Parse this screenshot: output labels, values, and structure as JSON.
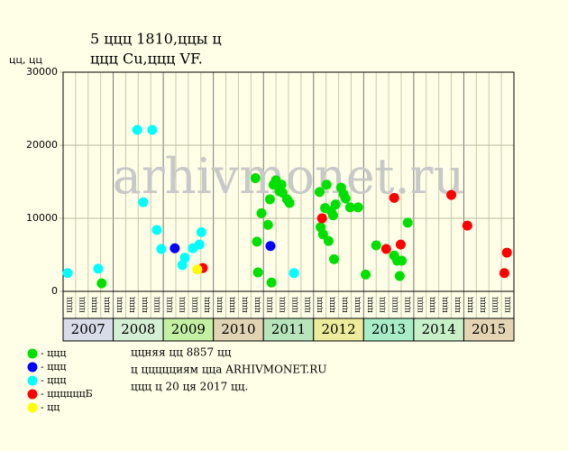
{
  "chart_data": {
    "type": "scatter",
    "title": "5 ццц 1810,ццы ц",
    "subtitle": "ццц Cu,ццц VF.",
    "y_label": "цц, цц",
    "watermark": "arhivmonet.ru",
    "xlim": [
      2007,
      2016
    ],
    "ylim": [
      0,
      30000
    ],
    "yticks": [
      0,
      10000,
      20000,
      30000
    ],
    "years": [
      "2007",
      "2008",
      "2009",
      "2010",
      "2011",
      "2012",
      "2013",
      "2014",
      "2015"
    ],
    "year_colors": [
      "#d8dce8",
      "#d4f0d4",
      "#c4f0a4",
      "#e0d4b4",
      "#b8e4bc",
      "#ecec9c",
      "#a8ecc8",
      "#c8f0c8",
      "#e4d4b4"
    ],
    "x_sublabels": [
      "ццц",
      "ццц",
      "ццц",
      "ццц",
      "ццц",
      "ццц",
      "ццц",
      "ццц",
      "ццц",
      "ццц",
      "ццц",
      "ццц",
      "ццц",
      "ццц",
      "ццц",
      "ццц",
      "ццц",
      "ццц",
      "ццц",
      "ццц",
      "ццц",
      "ццц",
      "ццц",
      "ццц",
      "ццц",
      "ццц",
      "ццц",
      "ццц",
      "ццц",
      "ццц",
      "ццц",
      "ццц",
      "ццц",
      "ццц",
      "ццц",
      "ццц"
    ],
    "series": [
      {
        "name": "- ццц",
        "color": "#00e000",
        "x": [
          2007.77,
          2010.84,
          2010.87,
          2010.89,
          2010.96,
          2011.09,
          2011.13,
          2011.16,
          2011.2,
          2011.25,
          2011.32,
          2011.36,
          2011.38,
          2011.47,
          2011.52,
          2012.12,
          2012.14,
          2012.19,
          2012.23,
          2012.26,
          2012.3,
          2012.35,
          2012.39,
          2012.41,
          2012.44,
          2012.55,
          2012.6,
          2012.64,
          2012.73,
          2012.89,
          2013.04,
          2013.25,
          2013.61,
          2013.67,
          2013.76,
          2013.72,
          2013.88
        ],
        "values": [
          1100,
          15500,
          6800,
          2600,
          10700,
          9100,
          12600,
          1200,
          14600,
          15200,
          13700,
          14600,
          13500,
          12600,
          12100,
          13600,
          8800,
          7800,
          11400,
          14600,
          6900,
          11000,
          10400,
          4400,
          11900,
          14200,
          13300,
          12700,
          11500,
          11500,
          2300,
          6300,
          4900,
          4200,
          4200,
          2100,
          9400
        ]
      },
      {
        "name": "- ццц",
        "color": "#0000ff",
        "x": [
          2009.23,
          2011.14
        ],
        "values": [
          5900,
          6200
        ]
      },
      {
        "name": "- ццц",
        "color": "#00ffff",
        "x": [
          2007.09,
          2007.7,
          2008.48,
          2008.6,
          2008.78,
          2008.87,
          2008.96,
          2009.38,
          2009.43,
          2009.59,
          2009.72,
          2009.76,
          2011.61
        ],
        "values": [
          2500,
          3100,
          22100,
          12200,
          22100,
          8400,
          5800,
          3600,
          4600,
          5900,
          6400,
          8100,
          2500
        ]
      },
      {
        "name": "- ццццццБ",
        "color": "#ff0000",
        "x": [
          2009.79,
          2012.17,
          2013.45,
          2013.61,
          2013.74,
          2014.75,
          2015.07,
          2015.81,
          2015.86
        ],
        "values": [
          3200,
          10000,
          5800,
          12800,
          6400,
          13200,
          9000,
          2500,
          5300
        ]
      },
      {
        "name": "- цц",
        "color": "#ffff00",
        "x": [
          2009.68
        ],
        "values": [
          3000
        ]
      }
    ],
    "notes": [
      "ццняя цц 8857 цц",
      "ц ццццциям цца ARHIVMONET.RU",
      "ццц ц 20 ця 2017 цц."
    ]
  }
}
